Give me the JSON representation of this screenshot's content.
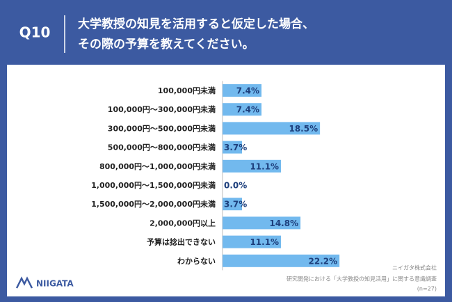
{
  "header": {
    "question": "Q10",
    "title_lines": [
      "大学教授の知見を活用すると仮定した場合、",
      "その際の予算を教えてください。"
    ]
  },
  "chart_data": {
    "type": "bar",
    "orientation": "horizontal",
    "categories": [
      "100,000円未満",
      "100,000円〜300,000円未満",
      "300,000円〜500,000円未満",
      "500,000円〜800,000円未満",
      "800,000円〜1,000,000円未満",
      "1,000,000円〜1,500,000円未満",
      "1,500,000円〜2,000,000円未満",
      "2,000,000円以上",
      "予算は捻出できない",
      "わからない"
    ],
    "values": [
      7.4,
      7.4,
      18.5,
      3.7,
      11.1,
      0.0,
      3.7,
      14.8,
      11.1,
      22.2
    ],
    "value_labels": [
      "7.4%",
      "7.4%",
      "18.5%",
      "3.7%",
      "11.1%",
      "0.0%",
      "3.7%",
      "14.8%",
      "11.1%",
      "22.2%"
    ],
    "color": "#72b9ee",
    "xlim": [
      0,
      40
    ]
  },
  "footer": {
    "logo": "NIIGATA",
    "source_lines": [
      "ニイガタ株式会社",
      "研究開発における「大学教授の知見活用」に関する意識調査",
      "(n=27)"
    ]
  }
}
